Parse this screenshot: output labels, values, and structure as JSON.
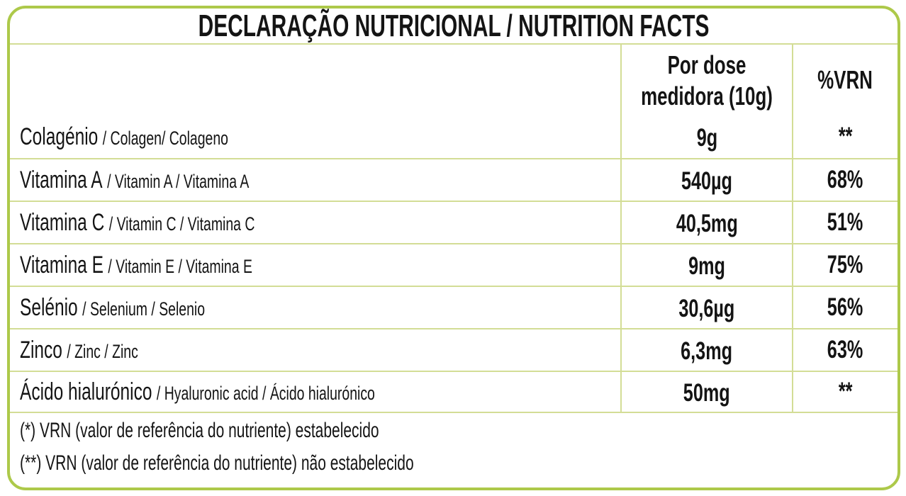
{
  "title": "DECLARAÇÃO NUTRICIONAL / NUTRITION FACTS",
  "colors": {
    "border_outer": "#adc94a",
    "border_inner": "#d3dd96",
    "text": "#141414"
  },
  "header": {
    "amount_line1": "Por dose",
    "amount_line2": "medidora (10g)",
    "vrn_label": "%VRN"
  },
  "rows": [
    {
      "name_primary": "Colagénio",
      "name_secondary": "/ Colagen/ Colageno",
      "amount": "9g",
      "vrn": "**"
    },
    {
      "name_primary": "Vitamina A",
      "name_secondary": "/ Vitamin A / Vitamina A",
      "amount": "540µg",
      "vrn": "68%"
    },
    {
      "name_primary": "Vitamina C",
      "name_secondary": "/ Vitamin C / Vitamina C",
      "amount": "40,5mg",
      "vrn": "51%"
    },
    {
      "name_primary": "Vitamina E",
      "name_secondary": "/ Vitamin E / Vitamina E",
      "amount": "9mg",
      "vrn": "75%"
    },
    {
      "name_primary": "Selénio",
      "name_secondary": "/ Selenium / Selenio",
      "amount": "30,6µg",
      "vrn": "56%"
    },
    {
      "name_primary": "Zinco",
      "name_secondary": "/ Zinc / Zinc",
      "amount": "6,3mg",
      "vrn": "63%"
    },
    {
      "name_primary": "Ácido hialurónico",
      "name_secondary": "/ Hyaluronic acid / Ácido hialurónico",
      "amount": "50mg",
      "vrn": "**"
    }
  ],
  "footnotes": [
    "(*) VRN (valor de referência do nutriente) estabelecido",
    "(**) VRN (valor de referência do nutriente) não estabelecido"
  ]
}
